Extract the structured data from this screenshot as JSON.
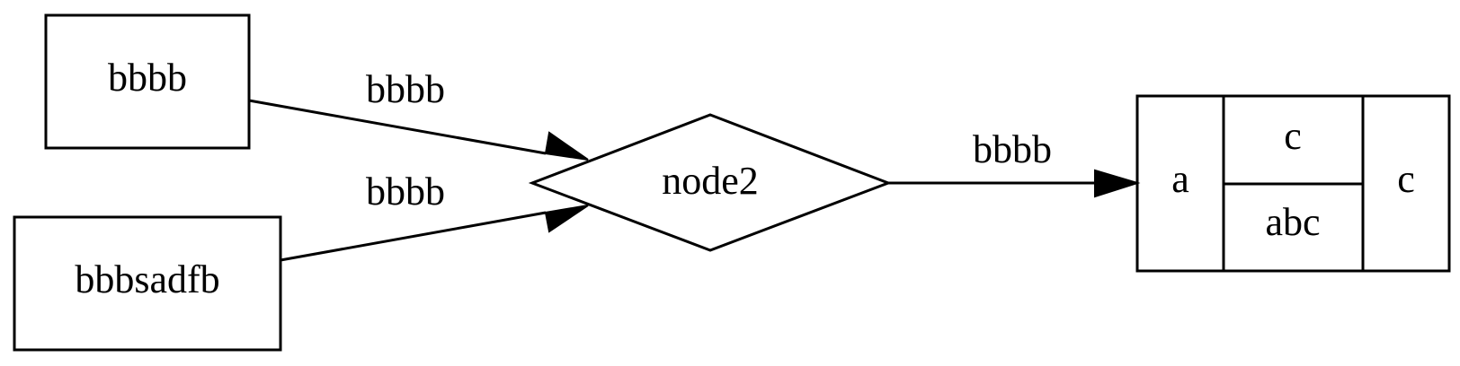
{
  "diagram": {
    "nodes": {
      "node_a": {
        "label": "bbbb",
        "shape": "box"
      },
      "node_b": {
        "label": "bbbsadfb",
        "shape": "box"
      },
      "node_center": {
        "label": "node2",
        "shape": "diamond"
      },
      "node_record": {
        "shape": "record",
        "fields": {
          "left": "a",
          "middle_top": "c",
          "middle_bottom": "abc",
          "right": "c"
        }
      }
    },
    "edges": [
      {
        "from": "node_a",
        "to": "node_center",
        "label": "bbbb"
      },
      {
        "from": "node_b",
        "to": "node_center",
        "label": "bbbb"
      },
      {
        "from": "node_center",
        "to": "node_record",
        "label": "bbbb"
      }
    ],
    "colors": {
      "stroke": "#000000",
      "fill": "#ffffff",
      "text": "#000000"
    }
  }
}
